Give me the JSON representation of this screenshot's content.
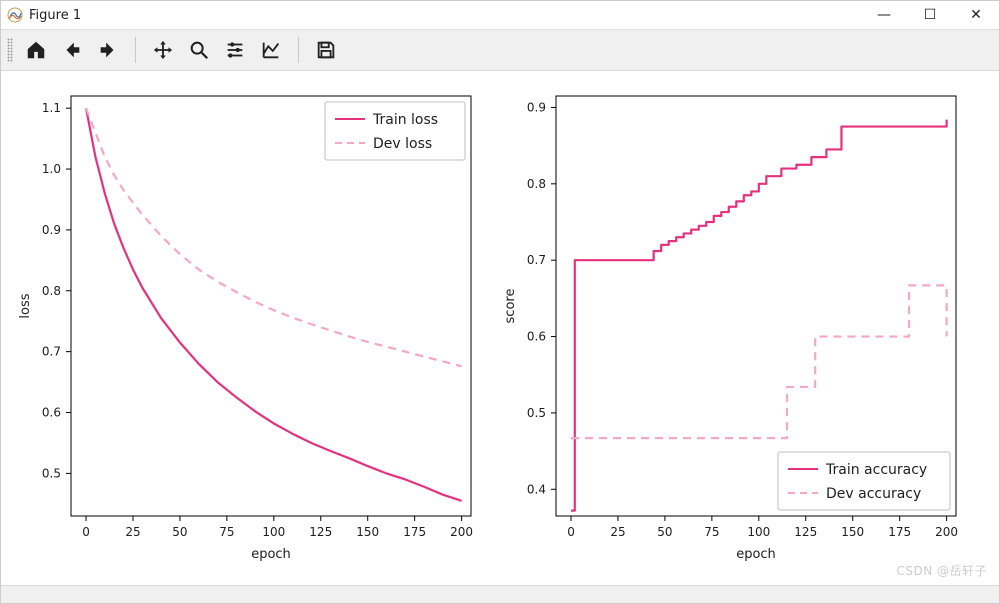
{
  "window": {
    "title": "Figure 1",
    "controls": {
      "minimize": "—",
      "maximize": "☐",
      "close": "✕"
    }
  },
  "toolbar": {
    "items": [
      {
        "name": "home-icon"
      },
      {
        "name": "back-icon"
      },
      {
        "name": "forward-icon"
      },
      {
        "sep": true
      },
      {
        "name": "pan-icon"
      },
      {
        "name": "zoom-icon"
      },
      {
        "name": "configure-icon"
      },
      {
        "name": "edit-icon"
      },
      {
        "sep": true
      },
      {
        "name": "save-icon"
      }
    ]
  },
  "watermark": "CSDN @岳轩子",
  "figure": {
    "bg": "#ffffff",
    "grid_color": "#e0e0e0",
    "axis_color": "#000000",
    "tick_color": "#000000",
    "tick_fontsize": 12,
    "label_fontsize": 13,
    "subplots": [
      {
        "name": "loss-plot",
        "xlabel": "epoch",
        "ylabel": "loss",
        "xlim": [
          -8,
          205
        ],
        "ylim": [
          0.43,
          1.12
        ],
        "xticks": [
          0,
          25,
          50,
          75,
          100,
          125,
          150,
          175,
          200
        ],
        "yticks": [
          0.5,
          0.6,
          0.7,
          0.8,
          0.9,
          1.0,
          1.1
        ],
        "legend": {
          "pos": "upper right",
          "entries": [
            {
              "label": "Train loss",
              "color": "#e6317f",
              "dash": false,
              "width": 2
            },
            {
              "label": "Dev loss",
              "color": "#f5a7c7",
              "dash": true,
              "width": 2
            }
          ]
        },
        "series": [
          {
            "name": "train-loss",
            "type": "line",
            "color": "#e6317f",
            "width": 2.2,
            "dash": false,
            "x": [
              0,
              5,
              10,
              15,
              20,
              25,
              30,
              40,
              50,
              60,
              70,
              80,
              90,
              100,
              110,
              120,
              130,
              140,
              150,
              160,
              170,
              180,
              190,
              200
            ],
            "y": [
              1.1,
              1.02,
              0.96,
              0.91,
              0.87,
              0.835,
              0.805,
              0.755,
              0.715,
              0.68,
              0.65,
              0.625,
              0.602,
              0.582,
              0.565,
              0.55,
              0.537,
              0.525,
              0.512,
              0.5,
              0.49,
              0.478,
              0.465,
              0.455
            ]
          },
          {
            "name": "dev-loss",
            "type": "line",
            "color": "#f5a7c7",
            "width": 2.2,
            "dash": true,
            "x": [
              0,
              5,
              10,
              15,
              20,
              25,
              30,
              40,
              50,
              60,
              70,
              80,
              90,
              100,
              110,
              120,
              130,
              140,
              150,
              160,
              170,
              180,
              190,
              200
            ],
            "y": [
              1.1,
              1.06,
              1.02,
              0.99,
              0.965,
              0.945,
              0.925,
              0.89,
              0.86,
              0.835,
              0.815,
              0.798,
              0.782,
              0.768,
              0.756,
              0.745,
              0.735,
              0.725,
              0.716,
              0.708,
              0.7,
              0.692,
              0.684,
              0.676
            ]
          }
        ]
      },
      {
        "name": "score-plot",
        "xlabel": "epoch",
        "ylabel": "score",
        "xlim": [
          -8,
          205
        ],
        "ylim": [
          0.365,
          0.915
        ],
        "xticks": [
          0,
          25,
          50,
          75,
          100,
          125,
          150,
          175,
          200
        ],
        "yticks": [
          0.4,
          0.5,
          0.6,
          0.7,
          0.8,
          0.9
        ],
        "legend": {
          "pos": "lower right",
          "entries": [
            {
              "label": "Train accuracy",
              "color": "#e6317f",
              "dash": false,
              "width": 2
            },
            {
              "label": "Dev accuracy",
              "color": "#f5a7c7",
              "dash": true,
              "width": 2
            }
          ]
        },
        "series": [
          {
            "name": "train-accuracy",
            "type": "step",
            "color": "#e6317f",
            "width": 2.2,
            "dash": false,
            "x": [
              0,
              2,
              40,
              44,
              48,
              52,
              56,
              60,
              64,
              68,
              72,
              76,
              80,
              84,
              88,
              92,
              96,
              100,
              104,
              112,
              120,
              128,
              136,
              144,
              195,
              200
            ],
            "y": [
              0.372,
              0.7,
              0.7,
              0.712,
              0.72,
              0.725,
              0.73,
              0.735,
              0.74,
              0.745,
              0.75,
              0.758,
              0.763,
              0.77,
              0.777,
              0.785,
              0.79,
              0.8,
              0.81,
              0.82,
              0.825,
              0.835,
              0.845,
              0.875,
              0.875,
              0.884
            ]
          },
          {
            "name": "dev-accuracy",
            "type": "step",
            "color": "#f5a7c7",
            "width": 2.2,
            "dash": true,
            "x": [
              0,
              2,
              105,
              115,
              130,
              160,
              180,
              200
            ],
            "y": [
              0.467,
              0.467,
              0.467,
              0.534,
              0.6,
              0.6,
              0.667,
              0.6
            ]
          }
        ]
      }
    ]
  }
}
